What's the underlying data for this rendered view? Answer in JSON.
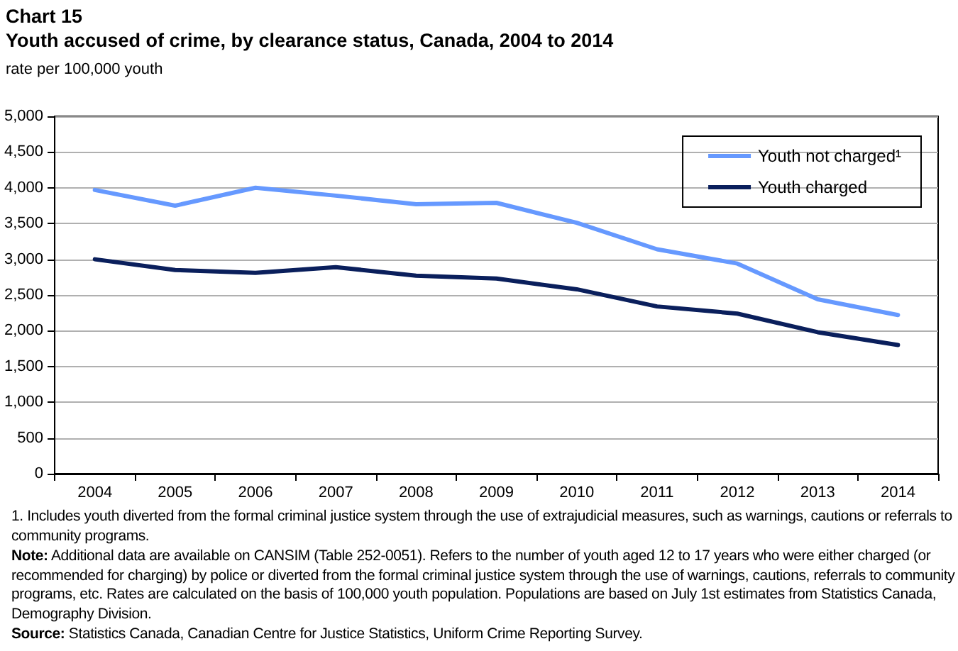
{
  "chart_data": {
    "type": "line",
    "title": "Chart 15",
    "subtitle": "Youth accused of crime, by clearance status, Canada, 2004 to 2014",
    "ylabel": "rate per 100,000 youth",
    "categories": [
      "2004",
      "2005",
      "2006",
      "2007",
      "2008",
      "2009",
      "2010",
      "2011",
      "2012",
      "2013",
      "2014"
    ],
    "series": [
      {
        "name": "Youth not charged¹",
        "color": "#6699ff",
        "values": [
          3970,
          3750,
          4000,
          3890,
          3770,
          3790,
          3510,
          3140,
          2940,
          2440,
          2220
        ]
      },
      {
        "name": "Youth charged",
        "color": "#0a1f5c",
        "values": [
          3000,
          2850,
          2810,
          2890,
          2770,
          2730,
          2580,
          2340,
          2240,
          1980,
          1800
        ]
      }
    ],
    "ylim": [
      0,
      5000
    ],
    "yticks": [
      {
        "value": 0,
        "label": "0"
      },
      {
        "value": 500,
        "label": "500"
      },
      {
        "value": 1000,
        "label": "1,000"
      },
      {
        "value": 1500,
        "label": "1,500"
      },
      {
        "value": 2000,
        "label": "2,000"
      },
      {
        "value": 2500,
        "label": "2,500"
      },
      {
        "value": 3000,
        "label": "3,000"
      },
      {
        "value": 3500,
        "label": "3,500"
      },
      {
        "value": 4000,
        "label": "4,000"
      },
      {
        "value": 4500,
        "label": "4,500"
      },
      {
        "value": 5000,
        "label": "5,000"
      }
    ],
    "grid": "y",
    "legend": "top right",
    "marker": "none",
    "line_style": "solid",
    "annotations": [
      "1. Includes youth diverted from the formal criminal justice system through the use of extrajudicial measures, such as warnings, cautions or referrals to community programs.",
      "Note: Additional data are available on CANSIM (Table 252-0051). Refers to the number of youth aged 12 to 17 years who were either charged (or recommended for charging) by police or diverted from the formal criminal justice system through the use of warnings, cautions, referrals to community programs, etc. Rates are calculated on the basis of 100,000 youth population. Populations are based on July 1st estimates from Statistics Canada, Demography Division.",
      "Source: Statistics Canada, Canadian Centre for Justice Statistics, Uniform Crime Reporting Survey."
    ]
  }
}
